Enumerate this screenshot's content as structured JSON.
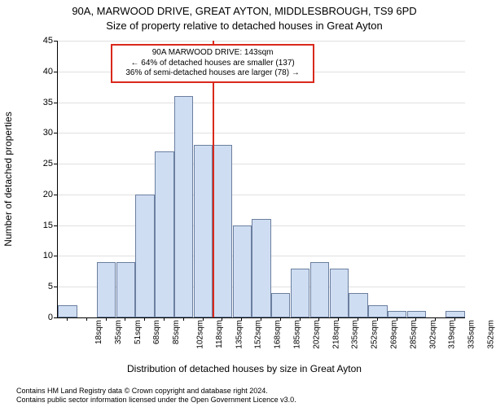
{
  "title_main": "90A, MARWOOD DRIVE, GREAT AYTON, MIDDLESBROUGH, TS9 6PD",
  "title_sub": "Size of property relative to detached houses in Great Ayton",
  "ylabel": "Number of detached properties",
  "xlabel": "Distribution of detached houses by size in Great Ayton",
  "footer_line1": "Contains HM Land Registry data © Crown copyright and database right 2024.",
  "footer_line2": "Contains public sector information licensed under the Open Government Licence v3.0.",
  "chart": {
    "type": "histogram",
    "ylim": [
      0,
      45
    ],
    "ytick_step": 5,
    "background_color": "#ffffff",
    "grid_color": "#e0e0e0",
    "bar_fill": "#cfddf2",
    "bar_border": "#6b7fa0",
    "marker_line_color": "#d9291c",
    "marker_x_value": 143,
    "x_labels": [
      "18sqm",
      "35sqm",
      "51sqm",
      "68sqm",
      "85sqm",
      "102sqm",
      "118sqm",
      "135sqm",
      "152sqm",
      "168sqm",
      "185sqm",
      "202sqm",
      "218sqm",
      "235sqm",
      "252sqm",
      "269sqm",
      "285sqm",
      "302sqm",
      "319sqm",
      "335sqm",
      "352sqm"
    ],
    "values": [
      2,
      0,
      9,
      9,
      20,
      27,
      36,
      28,
      28,
      15,
      16,
      4,
      8,
      9,
      8,
      4,
      2,
      1,
      1,
      0,
      1
    ]
  },
  "annotation": {
    "line1": "90A MARWOOD DRIVE: 143sqm",
    "line2": "← 64% of detached houses are smaller (137)",
    "line3": "36% of semi-detached houses are larger (78) →"
  }
}
